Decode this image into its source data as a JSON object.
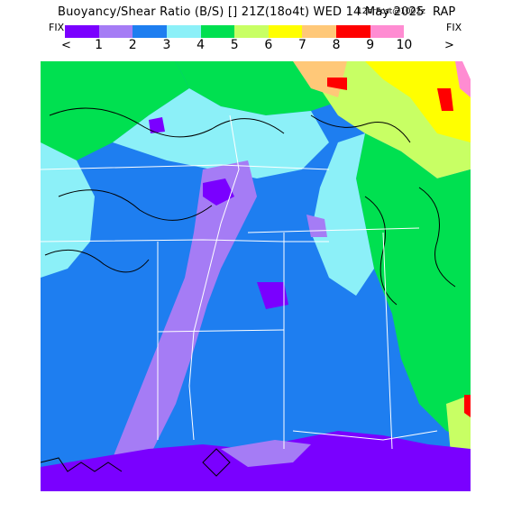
{
  "title": {
    "main": "Buoyancy/Shear Ratio (B/S) [] 21Z(18o4t) WED 14 May 2025",
    "small": "12hrFcst@1002z",
    "model": "RAP"
  },
  "controls": {
    "fix_left": "FIX",
    "fix_right": "FIX",
    "prev": "<",
    "next": ">"
  },
  "scale": {
    "labels": [
      "1",
      "2",
      "3",
      "4",
      "5",
      "6",
      "7",
      "8",
      "9",
      "10"
    ],
    "colors": [
      "#7a00ff",
      "#a57cf5",
      "#1e7ef0",
      "#8cf0f8",
      "#00e050",
      "#c8ff64",
      "#ffff00",
      "#ffc878",
      "#ff0000",
      "#ff8cd2",
      "#ffffff"
    ]
  },
  "palette": {
    "background": "#1e7ef0",
    "purple": "#7a00ff",
    "lavender": "#a57cf5",
    "blue": "#1e7ef0",
    "cyan": "#8cf0f8",
    "green": "#00e050",
    "lime": "#c8ff64",
    "yellow": "#ffff00",
    "orange": "#ffc878",
    "red": "#ff0000",
    "pink": "#ff8cd2",
    "white": "#ffffff",
    "borders": "#ffffff",
    "contours": "#000000"
  }
}
